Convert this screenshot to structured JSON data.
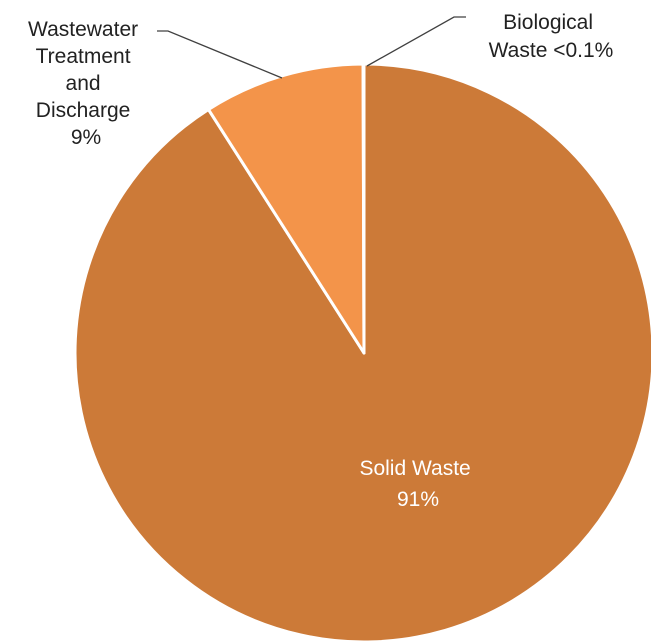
{
  "chart_data": {
    "type": "pie",
    "start_angle_deg": 0,
    "direction": "clockwise",
    "slices": [
      {
        "name": "Solid Waste",
        "value": 91,
        "value_label": "91%",
        "color": "#CC7A38",
        "label_lines": [
          "Solid Waste",
          "91%"
        ]
      },
      {
        "name": "Wastewater Treatment and Discharge",
        "value": 9,
        "value_label": "9%",
        "color": "#F3944A",
        "label_lines": [
          "Wastewater",
          "Treatment",
          "and",
          "Discharge",
          "9%"
        ]
      },
      {
        "name": "Biological Waste",
        "value": 0.05,
        "value_label": "<0.1%",
        "color": "#CC7A38",
        "label_lines": [
          "Biological",
          "Waste <0.1%"
        ]
      }
    ],
    "slice_border_color": "#ffffff",
    "leader_line_color": "#404040"
  }
}
